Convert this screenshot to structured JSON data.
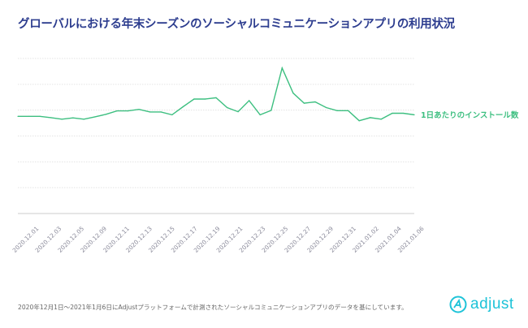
{
  "title": "グローバルにおける年末シーズンのソーシャルコミュニケーションアプリの利用状況",
  "footnote": "2020年12月1日〜2021年1月6日にAdjustプラットフォームで計測されたソーシャルコミュニケーションアプリのデータを基にしています。",
  "logo": {
    "text": "adjust",
    "color": "#1ec3d8"
  },
  "colors": {
    "line": "#3dbf80",
    "grid": "#e3e3e3",
    "axis": "#e6e6e6",
    "tick": "#8a8a9a"
  },
  "chart_data": {
    "type": "line",
    "title": "グローバルにおける年末シーズンのソーシャルコミュニケーションアプリの利用状況",
    "xlabel": "",
    "ylabel": "",
    "ylim": [
      0,
      6
    ],
    "grid": true,
    "tick_labels": [
      "2020.12.01",
      "2020.12.03",
      "2020.12.05",
      "2020.12.09",
      "2020.12.11",
      "2020.12.13",
      "2020.12.15",
      "2020.12.17",
      "2020.12.19",
      "2020.12.21",
      "2020.12.23",
      "2020.12.25",
      "2020.12.27",
      "2020.12.29",
      "2020.12.31",
      "2021.01.02",
      "2021.01.04",
      "2021.01.06"
    ],
    "series": [
      {
        "name": "1日あたりのインストール数",
        "values": [
          3.76,
          3.76,
          3.76,
          3.71,
          3.65,
          3.7,
          3.65,
          3.74,
          3.84,
          3.97,
          3.97,
          4.03,
          3.93,
          3.93,
          3.82,
          4.13,
          4.43,
          4.43,
          4.48,
          4.1,
          3.94,
          4.37,
          3.82,
          3.99,
          5.63,
          4.66,
          4.27,
          4.32,
          4.1,
          3.98,
          3.98,
          3.59,
          3.71,
          3.65,
          3.88,
          3.88,
          3.82
        ]
      }
    ]
  }
}
